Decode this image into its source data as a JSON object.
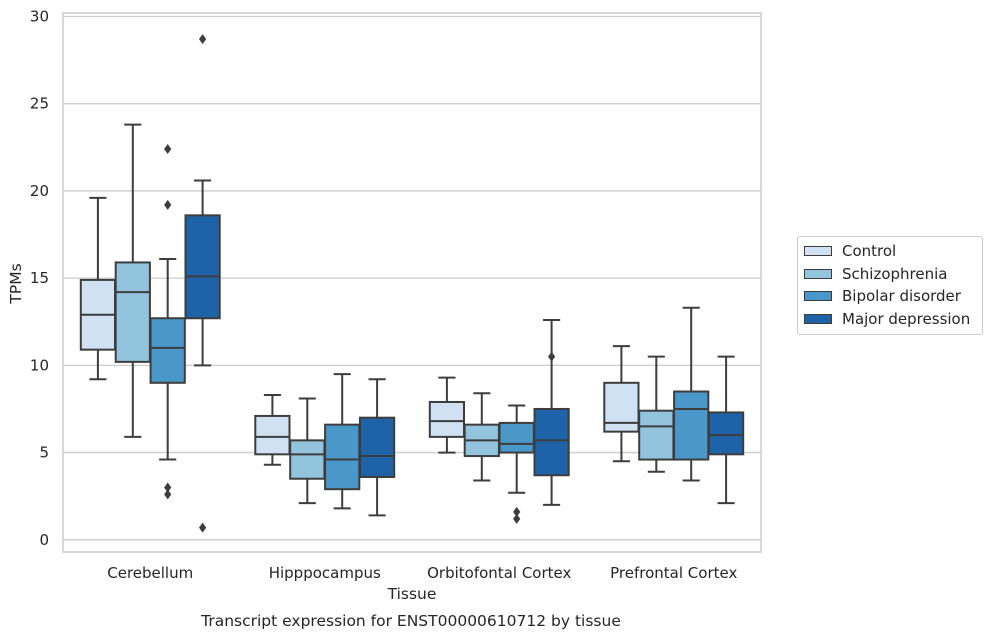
{
  "chart_data": {
    "type": "box",
    "title": "",
    "caption": "Transcript expression for ENST00000610712 by tissue",
    "xlabel": "Tissue",
    "ylabel": "TPMs",
    "ylim": [
      -0.7,
      30.2
    ],
    "yticks": [
      0,
      5,
      10,
      15,
      20,
      25,
      30
    ],
    "grid": true,
    "legend_position": "right",
    "categories": [
      "Cerebellum",
      "Hipppocampus",
      "Orbitofontal Cortex",
      "Prefrontal Cortex"
    ],
    "series": [
      {
        "name": "Control",
        "color": "#cfe1f2",
        "boxes": [
          {
            "whisker_low": 9.2,
            "q1": 10.9,
            "median": 12.9,
            "q3": 14.9,
            "whisker_high": 19.6,
            "outliers": []
          },
          {
            "whisker_low": 4.3,
            "q1": 4.9,
            "median": 5.9,
            "q3": 7.1,
            "whisker_high": 8.3,
            "outliers": []
          },
          {
            "whisker_low": 5.0,
            "q1": 5.9,
            "median": 6.8,
            "q3": 7.9,
            "whisker_high": 9.3,
            "outliers": []
          },
          {
            "whisker_low": 4.5,
            "q1": 6.2,
            "median": 6.7,
            "q3": 9.0,
            "whisker_high": 11.1,
            "outliers": []
          }
        ]
      },
      {
        "name": "Schizophrenia",
        "color": "#93c4de",
        "boxes": [
          {
            "whisker_low": 5.9,
            "q1": 10.2,
            "median": 14.2,
            "q3": 15.9,
            "whisker_high": 23.8,
            "outliers": []
          },
          {
            "whisker_low": 2.1,
            "q1": 3.5,
            "median": 4.9,
            "q3": 5.7,
            "whisker_high": 8.1,
            "outliers": []
          },
          {
            "whisker_low": 3.4,
            "q1": 4.8,
            "median": 5.7,
            "q3": 6.6,
            "whisker_high": 8.4,
            "outliers": []
          },
          {
            "whisker_low": 3.9,
            "q1": 4.6,
            "median": 6.5,
            "q3": 7.4,
            "whisker_high": 10.5,
            "outliers": []
          }
        ]
      },
      {
        "name": "Bipolar disorder",
        "color": "#4a98c9",
        "boxes": [
          {
            "whisker_low": 4.6,
            "q1": 9.0,
            "median": 11.0,
            "q3": 12.7,
            "whisker_high": 16.1,
            "outliers": [
              22.4,
              19.2,
              3.0,
              2.6
            ]
          },
          {
            "whisker_low": 1.8,
            "q1": 2.9,
            "median": 4.6,
            "q3": 6.6,
            "whisker_high": 9.5,
            "outliers": []
          },
          {
            "whisker_low": 2.7,
            "q1": 5.0,
            "median": 5.5,
            "q3": 6.7,
            "whisker_high": 7.7,
            "outliers": [
              1.6,
              1.2
            ]
          },
          {
            "whisker_low": 3.4,
            "q1": 4.6,
            "median": 7.5,
            "q3": 8.5,
            "whisker_high": 13.3,
            "outliers": []
          }
        ]
      },
      {
        "name": "Major depression",
        "color": "#1e63a8",
        "boxes": [
          {
            "whisker_low": 10.0,
            "q1": 12.7,
            "median": 15.1,
            "q3": 18.6,
            "whisker_high": 20.6,
            "outliers": [
              28.7,
              0.7
            ]
          },
          {
            "whisker_low": 1.4,
            "q1": 3.6,
            "median": 4.8,
            "q3": 7.0,
            "whisker_high": 9.2,
            "outliers": []
          },
          {
            "whisker_low": 2.0,
            "q1": 3.7,
            "median": 5.7,
            "q3": 7.5,
            "whisker_high": 12.6,
            "outliers": [
              10.5
            ]
          },
          {
            "whisker_low": 2.1,
            "q1": 4.9,
            "median": 6.0,
            "q3": 7.3,
            "whisker_high": 10.5,
            "outliers": []
          }
        ]
      }
    ]
  }
}
